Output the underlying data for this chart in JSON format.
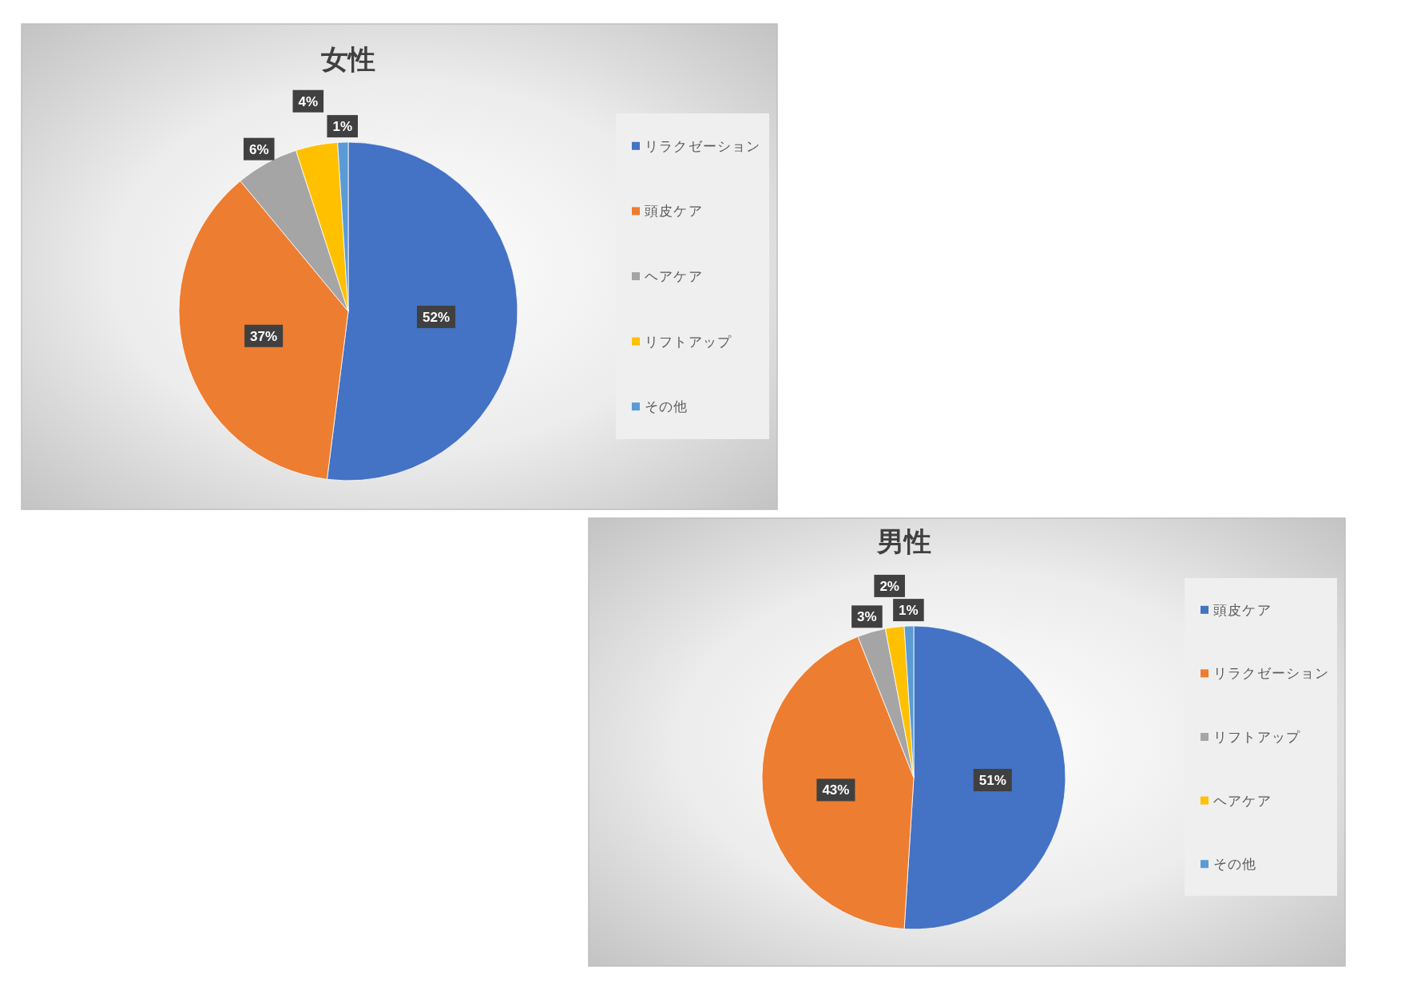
{
  "chart_data": [
    {
      "type": "pie",
      "title": "女性",
      "categories": [
        "リラクゼーション",
        "頭皮ケア",
        "ヘアケア",
        "リフトアップ",
        "その他"
      ],
      "values": [
        52,
        37,
        6,
        4,
        1
      ],
      "colors": [
        "#4472c4",
        "#ed7d31",
        "#a5a5a5",
        "#ffc000",
        "#5b9bd5"
      ],
      "value_labels": [
        "52%",
        "37%",
        "6%",
        "4%",
        "1%"
      ],
      "legend": "right"
    },
    {
      "type": "pie",
      "title": "男性",
      "categories": [
        "頭皮ケア",
        "リラクゼーション",
        "リフトアップ",
        "ヘアケア",
        "その他"
      ],
      "values": [
        51,
        43,
        3,
        2,
        1
      ],
      "colors": [
        "#4472c4",
        "#ed7d31",
        "#a5a5a5",
        "#ffc000",
        "#5b9bd5"
      ],
      "value_labels": [
        "51%",
        "43%",
        "3%",
        "2%",
        "1%"
      ],
      "legend": "right"
    }
  ]
}
